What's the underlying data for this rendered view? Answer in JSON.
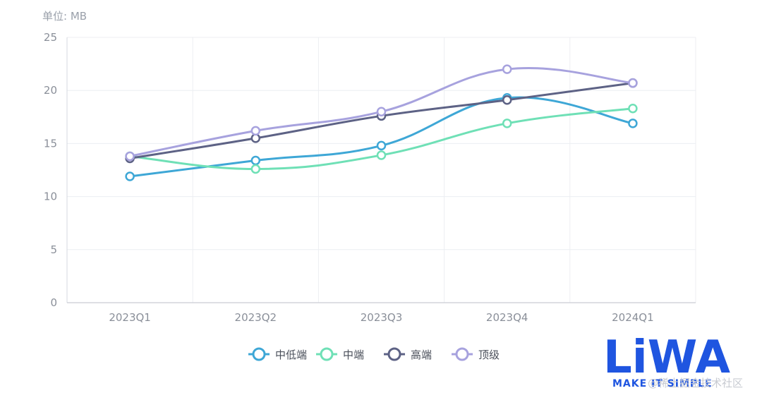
{
  "chart_data": {
    "type": "line",
    "unit_label": "单位: MB",
    "categories": [
      "2023Q1",
      "2023Q2",
      "2023Q3",
      "2023Q4",
      "2024Q1"
    ],
    "ylim": [
      0,
      25
    ],
    "yticks": [
      0,
      5,
      10,
      15,
      20,
      25
    ],
    "grid": true,
    "smooth": true,
    "legend_position": "bottom-center",
    "series": [
      {
        "name": "中低端",
        "color": "#3ea7d6",
        "values": [
          11.9,
          13.4,
          14.8,
          19.3,
          16.9
        ]
      },
      {
        "name": "中端",
        "color": "#6fe0b6",
        "values": [
          13.8,
          12.6,
          13.9,
          16.9,
          18.3
        ]
      },
      {
        "name": "高端",
        "color": "#5d6285",
        "values": [
          13.6,
          15.5,
          17.6,
          19.1,
          20.7
        ]
      },
      {
        "name": "顶级",
        "color": "#a7a2de",
        "values": [
          13.8,
          16.2,
          18.0,
          22.0,
          20.7
        ]
      }
    ]
  },
  "branding": {
    "logo_text": "LiWA",
    "logo_tagline": "MAKE IT SIMPLE",
    "watermark": "@稀土掘金技术社区",
    "logo_color": "#1f55e0"
  }
}
